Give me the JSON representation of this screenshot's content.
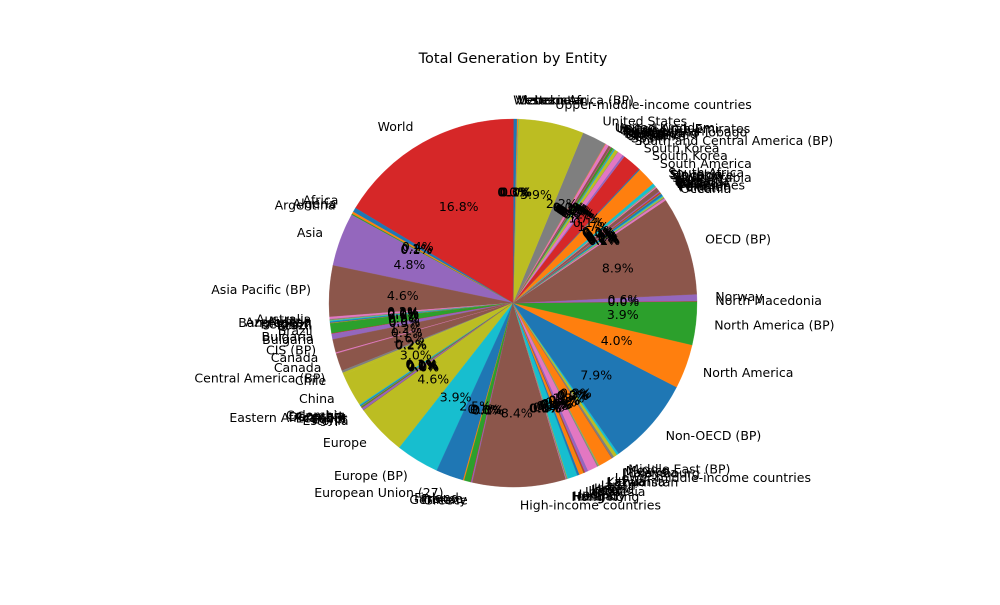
{
  "chart_data": {
    "type": "pie",
    "title": "Total Generation by Entity",
    "start_angle_deg": 90,
    "direction": "counterclockwise",
    "autopct_threshold_note": "",
    "slices": [
      {
        "label": "World",
        "value": 16.8,
        "pct_label": "16.8%",
        "color": "#d62728"
      },
      {
        "label": "Africa",
        "value": 0.4,
        "pct_label": "0.4%",
        "color": "#1f77b4"
      },
      {
        "label": "Algeria",
        "value": 0.2,
        "pct_label": "0.2%",
        "color": "#ff7f0e"
      },
      {
        "label": "Argentina",
        "value": 0.1,
        "pct_label": "0.1%",
        "color": "#2ca02c"
      },
      {
        "label": "Asia",
        "value": 4.8,
        "pct_label": "4.8%",
        "color": "#9467bd"
      },
      {
        "label": "Asia Pacific (BP)",
        "value": 4.6,
        "pct_label": "4.6%",
        "color": "#8c564b"
      },
      {
        "label": "Australia",
        "value": 0.2,
        "pct_label": "0.2%",
        "color": "#e377c2"
      },
      {
        "label": "Austria",
        "value": 0.1,
        "pct_label": "0.1%",
        "color": "#7f7f7f"
      },
      {
        "label": "Azerbaijan",
        "value": 0.0,
        "pct_label": "0.0%",
        "color": "#bcbd22"
      },
      {
        "label": "Bangladesh",
        "value": 0.1,
        "pct_label": "0.1%",
        "color": "#17becf"
      },
      {
        "label": "Belgium",
        "value": 0.1,
        "pct_label": "0.1%",
        "color": "#1f77b4"
      },
      {
        "label": "Brazil",
        "value": 0.0,
        "pct_label": "0.0%",
        "color": "#ff7f0e"
      },
      {
        "label": "Brazil",
        "value": 0.9,
        "pct_label": "0.9%",
        "color": "#2ca02c"
      },
      {
        "label": "Bulgaria",
        "value": 0.0,
        "pct_label": "0.0%",
        "color": "#d62728"
      },
      {
        "label": "Bulgaria",
        "value": 0.5,
        "pct_label": "0.5%",
        "color": "#9467bd"
      },
      {
        "label": "CIS (BP)",
        "value": 1.2,
        "pct_label": "1.2%",
        "color": "#8c564b"
      },
      {
        "label": "Canada",
        "value": 0.1,
        "pct_label": "0.1%",
        "color": "#e377c2"
      },
      {
        "label": "Canada",
        "value": 1.6,
        "pct_label": "1.6%",
        "color": "#8c564b"
      },
      {
        "label": "Central America (BP)",
        "value": 0.2,
        "pct_label": "0.2%",
        "color": "#7f7f7f"
      },
      {
        "label": "Chile",
        "value": 0.2,
        "pct_label": "0.2%",
        "color": "#bcbd22"
      },
      {
        "label": "China",
        "value": 3.0,
        "pct_label": "3.0%",
        "color": "#bcbd22"
      },
      {
        "label": "Colombia",
        "value": 0.1,
        "pct_label": "0.1%",
        "color": "#17becf"
      },
      {
        "label": "Czechia",
        "value": 0.1,
        "pct_label": "0.1%",
        "color": "#1f77b4"
      },
      {
        "label": "Denmark",
        "value": 0.0,
        "pct_label": "0.0%",
        "color": "#ff7f0e"
      },
      {
        "label": "Eastern Africa (BP)",
        "value": 0.1,
        "pct_label": "0.1%",
        "color": "#2ca02c"
      },
      {
        "label": "Ecuador",
        "value": 0.0,
        "pct_label": "0.0%",
        "color": "#d62728"
      },
      {
        "label": "Egypt",
        "value": 0.2,
        "pct_label": "0.2%",
        "color": "#9467bd"
      },
      {
        "label": "Estonia",
        "value": 0.0,
        "pct_label": "0.0%",
        "color": "#8c564b"
      },
      {
        "label": "Europe",
        "value": 4.6,
        "pct_label": "4.6%",
        "color": "#bcbd22"
      },
      {
        "label": "Europe (BP)",
        "value": 3.9,
        "pct_label": "3.9%",
        "color": "#17becf"
      },
      {
        "label": "European Union (27)",
        "value": 2.5,
        "pct_label": "2.5%",
        "color": "#1f77b4"
      },
      {
        "label": "Finland",
        "value": 0.1,
        "pct_label": "0.1%",
        "color": "#ff7f0e"
      },
      {
        "label": "France",
        "value": 0.6,
        "pct_label": "0.6%",
        "color": "#2ca02c"
      },
      {
        "label": "Germany",
        "value": 0.0,
        "pct_label": "0.0%",
        "color": "#d62728"
      },
      {
        "label": "Greece",
        "value": 0.1,
        "pct_label": "0.1%",
        "color": "#9467bd"
      },
      {
        "label": "High-income countries",
        "value": 8.4,
        "pct_label": "8.4%",
        "color": "#8c564b"
      },
      {
        "label": "Hong Kong",
        "value": 0.0,
        "pct_label": "0.0%",
        "color": "#e377c2"
      },
      {
        "label": "Hungary",
        "value": 0.1,
        "pct_label": "0.1%",
        "color": "#7f7f7f"
      },
      {
        "label": "Iceland",
        "value": 0.0,
        "pct_label": "0.0%",
        "color": "#bcbd22"
      },
      {
        "label": "India",
        "value": 0.9,
        "pct_label": "0.9%",
        "color": "#17becf"
      },
      {
        "label": "Indonesia",
        "value": 0.2,
        "pct_label": "0.2%",
        "color": "#1f77b4"
      },
      {
        "label": "Iran",
        "value": 0.4,
        "pct_label": "0.4%",
        "color": "#ff7f0e"
      },
      {
        "label": "Ireland",
        "value": 0.0,
        "pct_label": "0.0%",
        "color": "#2ca02c"
      },
      {
        "label": "Israel",
        "value": 0.1,
        "pct_label": "0.1%",
        "color": "#d62728"
      },
      {
        "label": "Italy",
        "value": 0.3,
        "pct_label": "0.3%",
        "color": "#9467bd"
      },
      {
        "label": "Japan",
        "value": 0.9,
        "pct_label": "0.9%",
        "color": "#e377c2"
      },
      {
        "label": "Kazakhstan",
        "value": 0.1,
        "pct_label": "0.1%",
        "color": "#7f7f7f"
      },
      {
        "label": "Latvia",
        "value": 0.0,
        "pct_label": "0.0%",
        "color": "#bcbd22"
      },
      {
        "label": "Lithuania",
        "value": 0.0,
        "pct_label": "0.0%",
        "color": "#17becf"
      },
      {
        "label": "Lower-middle-income countries",
        "value": 1.3,
        "pct_label": "1.3%",
        "color": "#ff7f0e"
      },
      {
        "label": "Luxembourg",
        "value": 0.0,
        "pct_label": "0.0%",
        "color": "#8c564b"
      },
      {
        "label": "Malaysia",
        "value": 0.2,
        "pct_label": "0.2%",
        "color": "#7f7f7f"
      },
      {
        "label": "Mexico",
        "value": 0.3,
        "pct_label": "0.3%",
        "color": "#bcbd22"
      },
      {
        "label": "Middle East (BP)",
        "value": 0.2,
        "pct_label": "0.2%",
        "color": "#17becf"
      },
      {
        "label": "Non-OECD (BP)",
        "value": 7.9,
        "pct_label": "7.9%",
        "color": "#1f77b4"
      },
      {
        "label": "North America",
        "value": 4.0,
        "pct_label": "4.0%",
        "color": "#ff7f0e"
      },
      {
        "label": "North America (BP)",
        "value": 3.9,
        "pct_label": "3.9%",
        "color": "#2ca02c"
      },
      {
        "label": "North Macedonia",
        "value": 0.0,
        "pct_label": "0.0%",
        "color": "#d62728"
      },
      {
        "label": "Norway",
        "value": 0.6,
        "pct_label": "0.6%",
        "color": "#9467bd"
      },
      {
        "label": "OECD (BP)",
        "value": 8.9,
        "pct_label": "8.9%",
        "color": "#8c564b"
      },
      {
        "label": "Oceania",
        "value": 0.2,
        "pct_label": "0.2%",
        "color": "#e377c2"
      },
      {
        "label": "Pakistan",
        "value": 0.1,
        "pct_label": "0.1%",
        "color": "#7f7f7f"
      },
      {
        "label": "Peru",
        "value": 0.1,
        "pct_label": "0.1%",
        "color": "#bcbd22"
      },
      {
        "label": "Philippines",
        "value": 0.1,
        "pct_label": "0.1%",
        "color": "#17becf"
      },
      {
        "label": "Poland",
        "value": 0.2,
        "pct_label": "0.2%",
        "color": "#1f77b4"
      },
      {
        "label": "Portugal",
        "value": 0.0,
        "pct_label": "0.0%",
        "color": "#ff7f0e"
      },
      {
        "label": "Qatar",
        "value": 0.0,
        "pct_label": "0.0%",
        "color": "#2ca02c"
      },
      {
        "label": "Romania",
        "value": 0.1,
        "pct_label": "0.1%",
        "color": "#d62728"
      },
      {
        "label": "Russia",
        "value": 0.1,
        "pct_label": "0.1%",
        "color": "#9467bd"
      },
      {
        "label": "Saudi Arabia",
        "value": 0.4,
        "pct_label": "0.4%",
        "color": "#8c564b"
      },
      {
        "label": "Singapore",
        "value": 0.1,
        "pct_label": "0.1%",
        "color": "#e377c2"
      },
      {
        "label": "Slovakia",
        "value": 0.0,
        "pct_label": "0.0%",
        "color": "#7f7f7f"
      },
      {
        "label": "Slovenia",
        "value": 0.0,
        "pct_label": "0.0%",
        "color": "#bcbd22"
      },
      {
        "label": "South Africa",
        "value": 0.3,
        "pct_label": "0.3%",
        "color": "#17becf"
      },
      {
        "label": "South America",
        "value": 1.7,
        "pct_label": "1.7%",
        "color": "#ff7f0e"
      },
      {
        "label": "South Korea",
        "value": 0.1,
        "pct_label": "0.1%",
        "color": "#1f77b4"
      },
      {
        "label": "South Korea",
        "value": 1.7,
        "pct_label": "1.7%",
        "color": "#d62728"
      },
      {
        "label": "South and Central America (BP)",
        "value": 0.2,
        "pct_label": "0.2%",
        "color": "#9467bd"
      },
      {
        "label": "Spain",
        "value": 0.5,
        "pct_label": "0.5%",
        "color": "#e377c2"
      },
      {
        "label": "Sri Lanka",
        "value": 0.0,
        "pct_label": "0.0%",
        "color": "#7f7f7f"
      },
      {
        "label": "Sweden",
        "value": 0.3,
        "pct_label": "0.3%",
        "color": "#bcbd22"
      },
      {
        "label": "Switzerland",
        "value": 0.1,
        "pct_label": "0.1%",
        "color": "#17becf"
      },
      {
        "label": "Taiwan",
        "value": 0.0,
        "pct_label": "0.0%",
        "color": "#1f77b4"
      },
      {
        "label": "Thailand",
        "value": 0.0,
        "pct_label": "0.0%",
        "color": "#ff7f0e"
      },
      {
        "label": "Trinidad and Tobago",
        "value": 0.2,
        "pct_label": "0.2%",
        "color": "#2ca02c"
      },
      {
        "label": "Turkey",
        "value": 0.0,
        "pct_label": "0.0%",
        "color": "#d62728"
      },
      {
        "label": "Turkmenistan",
        "value": 0.0,
        "pct_label": "0.0%",
        "color": "#9467bd"
      },
      {
        "label": "Ukraine",
        "value": 0.2,
        "pct_label": "0.2%",
        "color": "#8c564b"
      },
      {
        "label": "United Arab Emirates",
        "value": 0.3,
        "pct_label": "0.3%",
        "color": "#e377c2"
      },
      {
        "label": "United Kingdom",
        "value": 0.0,
        "pct_label": "0.0%",
        "color": "#ff7f0e"
      },
      {
        "label": "United States",
        "value": 2.2,
        "pct_label": "2.2%",
        "color": "#7f7f7f"
      },
      {
        "label": "Upper-middle-income countries",
        "value": 5.9,
        "pct_label": "5.9%",
        "color": "#bcbd22"
      },
      {
        "label": "Uzbekistan",
        "value": 0.0,
        "pct_label": "0.0%",
        "color": "#17becf"
      },
      {
        "label": "Venezuela",
        "value": 0.1,
        "pct_label": "0.1%",
        "color": "#ff7f0e"
      },
      {
        "label": "Vietnam",
        "value": 0.3,
        "pct_label": "0.3%",
        "color": "#1f77b4"
      },
      {
        "label": "Western Africa (BP)",
        "value": 0.0,
        "pct_label": "0.0%",
        "color": "#d62728"
      }
    ]
  }
}
